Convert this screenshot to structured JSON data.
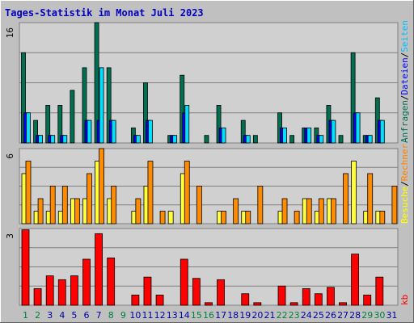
{
  "chart_data": {
    "type": "bar",
    "title": "Tages-Statistik im Monat Juli 2023",
    "days": [
      "1",
      "2",
      "3",
      "4",
      "5",
      "6",
      "7",
      "8",
      "9",
      "10",
      "11",
      "12",
      "13",
      "14",
      "15",
      "16",
      "17",
      "18",
      "19",
      "20",
      "21",
      "22",
      "23",
      "24",
      "25",
      "26",
      "27",
      "28",
      "29",
      "30",
      "31"
    ],
    "weekend_days": [
      "1",
      "2",
      "8",
      "9",
      "15",
      "16",
      "22",
      "23",
      "29",
      "30"
    ],
    "panels": [
      {
        "id": "top",
        "ymax": 16,
        "ymax_label": "16",
        "right_labels": [
          {
            "text": "Anfragen",
            "color": "#007050"
          },
          {
            "text": "/",
            "color": "#000000"
          },
          {
            "text": "Dateien",
            "color": "#0000ff"
          },
          {
            "text": "/",
            "color": "#000000"
          },
          {
            "text": "Seiten",
            "color": "#00c0ff"
          }
        ],
        "series": [
          {
            "name": "Anfragen",
            "color": "#007050",
            "values": [
              12,
              3,
              5,
              5,
              7,
              10,
              16,
              10,
              0,
              2,
              8,
              0,
              1,
              9,
              0,
              1,
              5,
              0,
              3,
              1,
              0,
              4,
              1,
              2,
              2,
              5,
              1,
              12,
              1,
              6,
              0
            ]
          },
          {
            "name": "Dateien",
            "color": "#0000ff",
            "values": [
              4,
              1,
              1,
              1,
              0,
              3,
              3,
              3,
              0,
              1,
              3,
              0,
              1,
              4,
              0,
              0,
              2,
              0,
              1,
              0,
              0,
              2,
              0,
              2,
              1,
              3,
              0,
              4,
              1,
              3,
              0
            ]
          },
          {
            "name": "Seiten",
            "color": "#00e0ff",
            "values": [
              4,
              1,
              1,
              1,
              0,
              3,
              10,
              3,
              0,
              1,
              3,
              0,
              1,
              5,
              0,
              0,
              2,
              0,
              1,
              0,
              0,
              2,
              0,
              2,
              1,
              3,
              0,
              4,
              1,
              3,
              0
            ]
          }
        ]
      },
      {
        "id": "middle",
        "ymax": 6,
        "ymax_label": "6",
        "right_labels": [
          {
            "text": "Besuche",
            "color": "#ffff00"
          },
          {
            "text": "/",
            "color": "#000000"
          },
          {
            "text": "Rechner",
            "color": "#ff8000"
          }
        ],
        "series": [
          {
            "name": "Besuche",
            "color": "#ffff40",
            "values": [
              4,
              1,
              1,
              1,
              2,
              2,
              5,
              2,
              0,
              1,
              3,
              0,
              1,
              4,
              0,
              0,
              1,
              0,
              1,
              0,
              0,
              1,
              0,
              2,
              1,
              2,
              0,
              5,
              1,
              1,
              0
            ]
          },
          {
            "name": "Rechner",
            "color": "#ff8c00",
            "values": [
              5,
              2,
              3,
              3,
              2,
              4,
              6,
              3,
              0,
              2,
              5,
              1,
              0,
              5,
              3,
              0,
              1,
              2,
              1,
              3,
              0,
              2,
              1,
              2,
              2,
              2,
              4,
              0,
              4,
              1,
              3
            ]
          }
        ]
      },
      {
        "id": "bottom",
        "ymax": 3,
        "ymax_label": "3",
        "right_labels": [
          {
            "text": "kb",
            "color": "#ff0000"
          }
        ],
        "series": [
          {
            "name": "kb",
            "color": "#ff0000",
            "values": [
              2.95,
              0.65,
              1.15,
              1.0,
              1.15,
              1.8,
              2.8,
              1.85,
              0,
              0.4,
              1.1,
              0.4,
              0,
              1.8,
              1.05,
              0.1,
              1.0,
              0,
              0.45,
              0.1,
              0,
              0.75,
              0.1,
              0.65,
              0.45,
              0.7,
              0.1,
              2.0,
              0.4,
              1.1,
              0
            ]
          }
        ]
      }
    ],
    "colors": {
      "title": "#0000c0",
      "weekday_label": "#0000a0",
      "weekend_label": "#008040",
      "background": "#c0c0c0",
      "plot_background": "#d0d0d0",
      "grid": "#808080"
    }
  }
}
